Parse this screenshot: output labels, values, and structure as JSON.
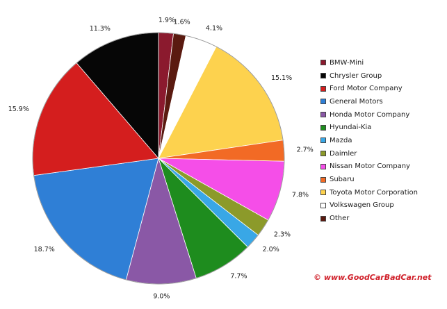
{
  "chart_data": {
    "type": "pie",
    "slices": [
      {
        "name": "BMW-Mini",
        "value": 1.9,
        "label": "1.9%",
        "color": "#8b1a2e"
      },
      {
        "name": "Other",
        "value": 1.6,
        "label": "1.6%",
        "color": "#5a1a10"
      },
      {
        "name": "Volkswagen Group",
        "value": 4.1,
        "label": "4.1%",
        "color": "#ffffff"
      },
      {
        "name": "Toyota Motor Corporation",
        "value": 15.1,
        "label": "15.1%",
        "color": "#fdd24e"
      },
      {
        "name": "Subaru",
        "value": 2.7,
        "label": "2.7%",
        "color": "#f26a25"
      },
      {
        "name": "Nissan Motor Company",
        "value": 7.8,
        "label": "7.8%",
        "color": "#f54ee8"
      },
      {
        "name": "Daimler",
        "value": 2.3,
        "label": "2.3%",
        "color": "#8c9a2a"
      },
      {
        "name": "Mazda",
        "value": 2.0,
        "label": "2.0%",
        "color": "#39a7e6"
      },
      {
        "name": "Hyundai-Kia",
        "value": 7.7,
        "label": "7.7%",
        "color": "#1e8c1e"
      },
      {
        "name": "Honda Motor Company",
        "value": 9.0,
        "label": "9.0%",
        "color": "#8a58a6"
      },
      {
        "name": "General Motors",
        "value": 18.7,
        "label": "18.7%",
        "color": "#2f7fd6"
      },
      {
        "name": "Ford Motor Company",
        "value": 15.9,
        "label": "15.9%",
        "color": "#d41e1e"
      },
      {
        "name": "Chrysler Group",
        "value": 11.3,
        "label": "11.3%",
        "color": "#060606"
      }
    ],
    "legend": [
      {
        "name": "BMW-Mini",
        "color": "#8b1a2e"
      },
      {
        "name": "Chrysler Group",
        "color": "#060606"
      },
      {
        "name": "Ford Motor Company",
        "color": "#d41e1e"
      },
      {
        "name": "General Motors",
        "color": "#2f7fd6"
      },
      {
        "name": "Honda Motor Company",
        "color": "#8a58a6"
      },
      {
        "name": "Hyundai-Kia",
        "color": "#1e8c1e"
      },
      {
        "name": "Mazda",
        "color": "#39a7e6"
      },
      {
        "name": "Daimler",
        "color": "#8c9a2a"
      },
      {
        "name": "Nissan Motor Company",
        "color": "#f54ee8"
      },
      {
        "name": "Subaru",
        "color": "#f26a25"
      },
      {
        "name": "Toyota Motor Corporation",
        "color": "#fdd24e"
      },
      {
        "name": "Volkswagen Group",
        "color": "#ffffff"
      },
      {
        "name": "Other",
        "color": "#5a1a10"
      }
    ],
    "legend_position": "right",
    "watermark": "© www.GoodCarBadCar.net",
    "watermark_color": "#d0202a"
  }
}
